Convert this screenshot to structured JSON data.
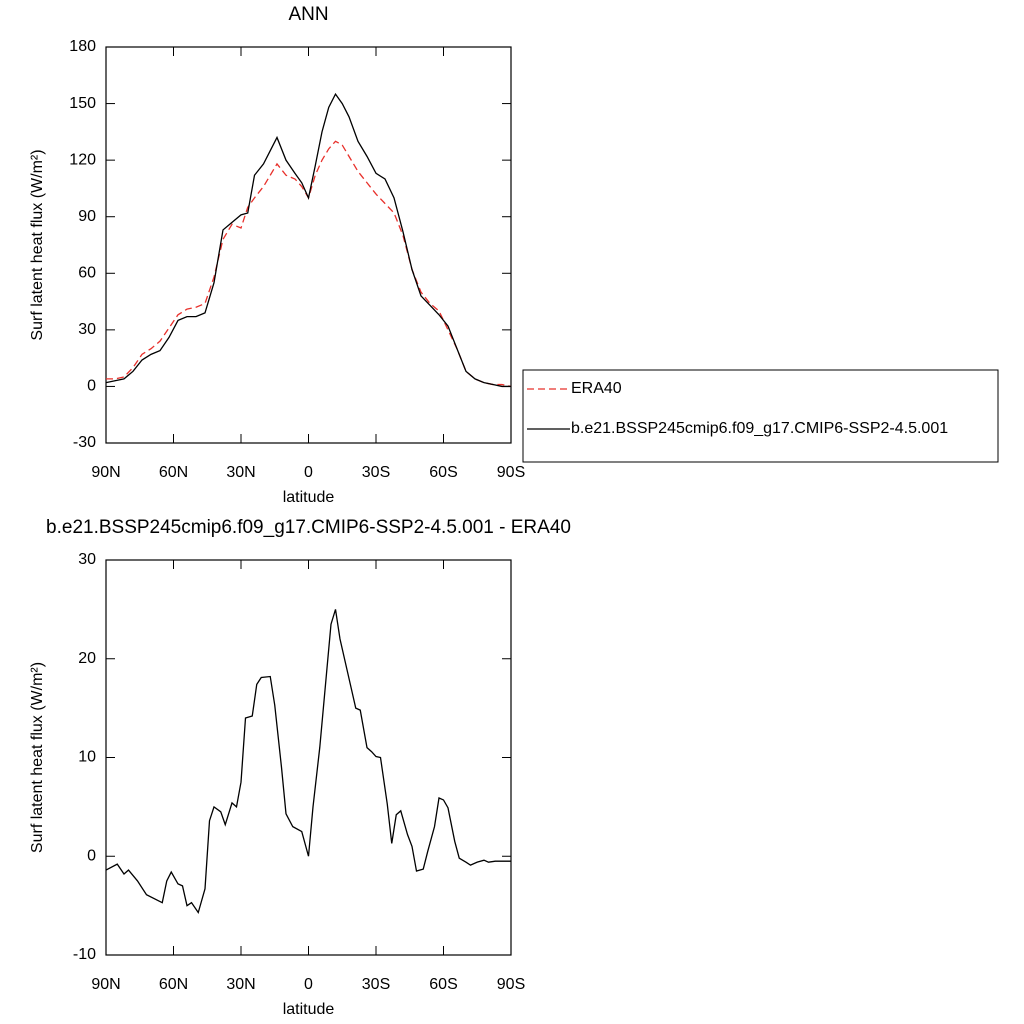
{
  "chart_data": [
    {
      "type": "line",
      "title": "ANN",
      "xlabel": "latitude",
      "ylabel": "Surf latent heat flux (W/m²)",
      "x": [
        90,
        86,
        82,
        78,
        74,
        70,
        66,
        62,
        58,
        54,
        50,
        46,
        42,
        38,
        34,
        30,
        27,
        24,
        20,
        17,
        14,
        10,
        6,
        3,
        0,
        -3,
        -6,
        -9,
        -12,
        -15,
        -18,
        -22,
        -26,
        -30,
        -34,
        -38,
        -42,
        -46,
        -50,
        -54,
        -58,
        -62,
        -66,
        -70,
        -74,
        -78,
        -82,
        -86,
        -90
      ],
      "series": [
        {
          "name": "ERA40",
          "color": "#e8302b",
          "dashed": true,
          "values": [
            4,
            4,
            5,
            10,
            17,
            20,
            24,
            31,
            38,
            41,
            42,
            44,
            58,
            78,
            86,
            84,
            95,
            100,
            106,
            112,
            118,
            112,
            110,
            106,
            100,
            112,
            120,
            126,
            130,
            128,
            122,
            114,
            108,
            102,
            97,
            92,
            80,
            62,
            50,
            44,
            40,
            30,
            20,
            8,
            4,
            2,
            1,
            1,
            0
          ]
        },
        {
          "name": "b.e21.BSSP245cmip6.f09_g17.CMIP6-SSP2-4.5.001",
          "color": "#000000",
          "dashed": false,
          "values": [
            2,
            3,
            4,
            8,
            14,
            17,
            19,
            26,
            35,
            37,
            37,
            39,
            55,
            83,
            87,
            91,
            92,
            112,
            118,
            125,
            132,
            120,
            113,
            108,
            100,
            117,
            135,
            148,
            155,
            150,
            143,
            130,
            122,
            113,
            110,
            100,
            82,
            62,
            48,
            43,
            38,
            32,
            20,
            8,
            4,
            2,
            1,
            0,
            0
          ]
        }
      ],
      "xlim": [
        90,
        -90
      ],
      "xticks": [
        {
          "value": 90,
          "label": "90N"
        },
        {
          "value": 60,
          "label": "60N"
        },
        {
          "value": 30,
          "label": "30N"
        },
        0,
        {
          "value": -30,
          "label": "30S"
        },
        {
          "value": -60,
          "label": "60S"
        },
        {
          "value": -90,
          "label": "90S"
        }
      ],
      "ylim": [
        -30,
        180
      ],
      "yticks": [
        -30,
        0,
        30,
        60,
        90,
        120,
        150,
        180
      ],
      "grid": false,
      "legend": "right"
    },
    {
      "type": "line",
      "title": "b.e21.BSSP245cmip6.f09_g17.CMIP6-SSP2-4.5.001 - ERA40",
      "xlabel": "latitude",
      "ylabel": "Surf latent heat flux (W/m²)",
      "x": [
        90,
        85,
        82,
        80,
        76,
        72,
        65,
        63,
        61,
        58,
        56,
        54,
        52,
        49,
        46,
        44,
        42,
        39,
        37,
        34,
        32,
        30,
        28,
        25,
        23,
        21,
        17,
        15,
        12,
        10,
        7,
        3,
        0,
        -2,
        -5,
        -8,
        -10,
        -12,
        -14,
        -17,
        -19,
        -21,
        -23,
        -26,
        -28,
        -30,
        -32,
        -35,
        -37,
        -39,
        -41,
        -44,
        -46,
        -48,
        -51,
        -53,
        -56,
        -58,
        -60,
        -62,
        -65,
        -67,
        -70,
        -72,
        -75,
        -78,
        -80,
        -83,
        -86,
        -90
      ],
      "series": [
        {
          "color": "#000000",
          "dashed": false,
          "values": [
            -1.4,
            -0.8,
            -1.8,
            -1.4,
            -2.5,
            -3.9,
            -4.7,
            -2.5,
            -1.6,
            -2.8,
            -3,
            -5,
            -4.7,
            -5.7,
            -3.3,
            3.6,
            5,
            4.5,
            3.2,
            5.4,
            5,
            7.5,
            14,
            14.2,
            17.4,
            18.1,
            18.2,
            15.3,
            9,
            4.3,
            3,
            2.5,
            0,
            5,
            11,
            18.5,
            23.5,
            25,
            22,
            19,
            17,
            15,
            14.8,
            11,
            10.6,
            10.1,
            10,
            5.3,
            1.3,
            4.2,
            4.6,
            2.2,
            1,
            -1.5,
            -1.3,
            0.5,
            3,
            5.9,
            5.7,
            4.9,
            1.5,
            -0.2,
            -0.6,
            -0.9,
            -0.6,
            -0.4,
            -0.6,
            -0.5,
            -0.5,
            -0.5
          ]
        }
      ],
      "xlim": [
        90,
        -90
      ],
      "xticks": [
        {
          "value": 90,
          "label": "90N"
        },
        {
          "value": 60,
          "label": "60N"
        },
        {
          "value": 30,
          "label": "30N"
        },
        0,
        {
          "value": -30,
          "label": "30S"
        },
        {
          "value": -60,
          "label": "60S"
        },
        {
          "value": -90,
          "label": "90S"
        }
      ],
      "ylim": [
        -10,
        30
      ],
      "yticks": [
        -10,
        0,
        10,
        20,
        30
      ],
      "grid": false
    }
  ]
}
